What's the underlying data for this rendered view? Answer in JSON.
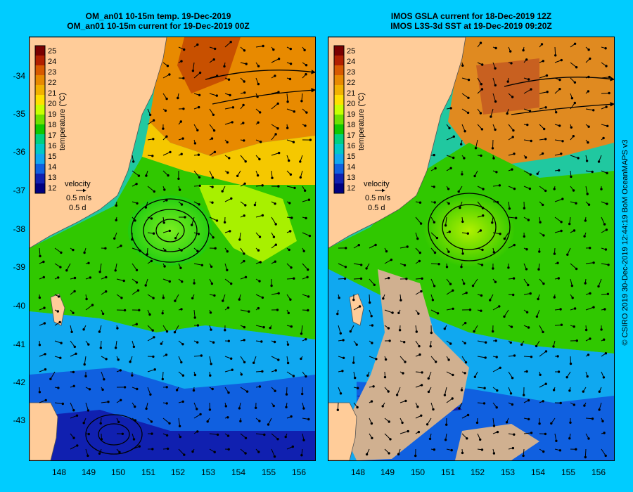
{
  "left_panel": {
    "title_line1": "OM_an01 10-15m temp. 19-Dec-2019",
    "title_line2": "OM_an01 10-15m current for 19-Dec-2019 00Z"
  },
  "right_panel": {
    "title_line1": "IMOS GSLA current for 18-Dec-2019 12Z",
    "title_line2": "IMOS L3S-3d SST at 19-Dec-2019 09:20Z"
  },
  "colorbar": {
    "ticks": [
      "25",
      "24",
      "23",
      "22",
      "21",
      "20",
      "19",
      "18",
      "17",
      "16",
      "15",
      "14",
      "13",
      "12"
    ],
    "axis_label": "temperature (°C)",
    "colors": [
      "#7a0000",
      "#b22000",
      "#d85a00",
      "#e88a00",
      "#f2b200",
      "#ffe000",
      "#c8ff00",
      "#6fe000",
      "#10c800",
      "#00d080",
      "#00c8c8",
      "#10a8f0",
      "#1060e0",
      "#1020b0",
      "#000080"
    ]
  },
  "velocity_key": {
    "title": "velocity",
    "speed": "0.5 m/s",
    "duration": "0.5 d"
  },
  "axes": {
    "y_ticks": [
      "-34",
      "-35",
      "-36",
      "-37",
      "-38",
      "-39",
      "-40",
      "-41",
      "-42",
      "-43"
    ],
    "x_ticks": [
      "148",
      "149",
      "150",
      "151",
      "152",
      "153",
      "154",
      "155",
      "156"
    ]
  },
  "copyright": "© CSIRO 2019  30-Dec-2019 12:44:19 BoM OceanMAPS v3"
}
